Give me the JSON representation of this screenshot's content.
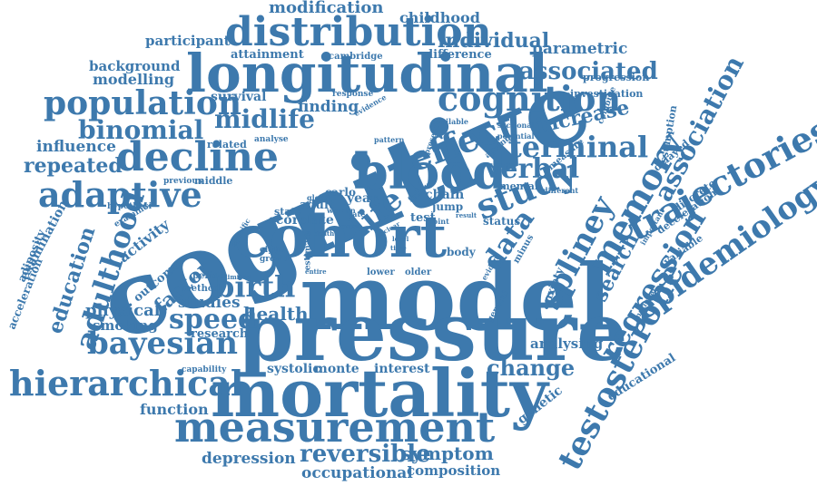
{
  "cloud": {
    "color": "#3d79ad",
    "background": "#ffffff",
    "words": [
      "cognitive",
      "model",
      "pressure",
      "mortality",
      "cohort",
      "blood",
      "longitudinal",
      "measurement",
      "distribution",
      "hierarchical",
      "study",
      "decline",
      "adaptive",
      "cognition",
      "memory",
      "trajectories",
      "epidemiology",
      "testosterone",
      "population",
      "regression",
      "spliney",
      "adulthood",
      "bayesian",
      "birth",
      "effect",
      "life",
      "speed",
      "terminal",
      "verbal",
      "association",
      "binomial",
      "associated",
      "midlife",
      "data",
      "search",
      "education",
      "reversible",
      "change",
      "individual",
      "repeated",
      "modelling",
      "modification",
      "childhood",
      "participant",
      "parametric",
      "attainment",
      "difference",
      "background",
      "cambridge",
      "progression",
      "increase",
      "influence",
      "survival",
      "finding",
      "investigation",
      "factor",
      "activity",
      "health",
      "physical",
      "smoking",
      "studies",
      "function",
      "symptom",
      "depression",
      "occupational",
      "composition",
      "interest",
      "systolic",
      "monte",
      "analysing",
      "genetic",
      "educational",
      "examination",
      "acceleration",
      "adiposity",
      "anxiety",
      "research",
      "outcome",
      "method",
      "period",
      "capability",
      "hypothesi",
      "examine",
      "previous",
      "middle",
      "related",
      "analyse",
      "response",
      "evidence",
      "sectional",
      "available",
      "assumption",
      "delayed",
      "discrete",
      "deceleration",
      "variable",
      "important",
      "national",
      "minus",
      "general",
      "potential",
      "different",
      "measure",
      "ageing",
      "pattern",
      "present",
      "mental",
      "chain",
      "jump",
      "status",
      "follow",
      "test",
      "year",
      "adult",
      "carlo",
      "global",
      "state",
      "scorelate",
      "woman",
      "rate",
      "death",
      "estimate",
      "eight",
      "growth",
      "specific",
      "limited",
      "lower",
      "older",
      "entire",
      "body",
      "result",
      "joint",
      "unclear",
      "cross",
      "level",
      "time",
      "combine",
      "evident"
    ]
  }
}
